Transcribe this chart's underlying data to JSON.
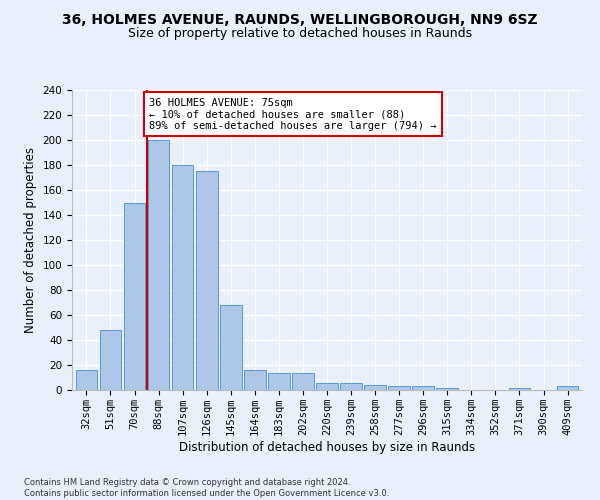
{
  "title_line1": "36, HOLMES AVENUE, RAUNDS, WELLINGBOROUGH, NN9 6SZ",
  "title_line2": "Size of property relative to detached houses in Raunds",
  "xlabel": "Distribution of detached houses by size in Raunds",
  "ylabel": "Number of detached properties",
  "footnote": "Contains HM Land Registry data © Crown copyright and database right 2024.\nContains public sector information licensed under the Open Government Licence v3.0.",
  "categories": [
    "32sqm",
    "51sqm",
    "70sqm",
    "88sqm",
    "107sqm",
    "126sqm",
    "145sqm",
    "164sqm",
    "183sqm",
    "202sqm",
    "220sqm",
    "239sqm",
    "258sqm",
    "277sqm",
    "296sqm",
    "315sqm",
    "334sqm",
    "352sqm",
    "371sqm",
    "390sqm",
    "409sqm"
  ],
  "values": [
    16,
    48,
    150,
    200,
    180,
    175,
    68,
    16,
    14,
    14,
    6,
    6,
    4,
    3,
    3,
    2,
    0,
    0,
    2,
    0,
    3
  ],
  "bar_color": "#aec6e8",
  "bar_edge_color": "#5b9bd5",
  "vline_x": 2.5,
  "vline_color": "#cc0000",
  "annotation_text": "36 HOLMES AVENUE: 75sqm\n← 10% of detached houses are smaller (88)\n89% of semi-detached houses are larger (794) →",
  "annotation_box_color": "#ffffff",
  "annotation_box_edge_color": "#cc0000",
  "ylim": [
    0,
    240
  ],
  "yticks": [
    0,
    20,
    40,
    60,
    80,
    100,
    120,
    140,
    160,
    180,
    200,
    220,
    240
  ],
  "bg_color": "#eaf0fb",
  "plot_bg_color": "#eaf0fb",
  "grid_color": "#ffffff",
  "title1_fontsize": 10,
  "title2_fontsize": 9,
  "xlabel_fontsize": 8.5,
  "ylabel_fontsize": 8.5,
  "tick_fontsize": 7.5,
  "annot_fontsize": 7.5
}
